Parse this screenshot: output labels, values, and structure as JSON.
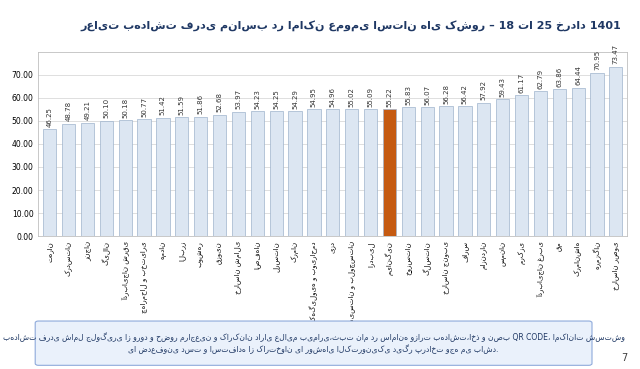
{
  "chart_data": {
    "type": "bar",
    "title": "رعایت بهداشت فردی مناسب در اماکن عمومی استان های کشور – 18 تا 25 خرداد 1401",
    "categories": [
      "تهران",
      "کردستان",
      "زنجان",
      "گیلان",
      "آذربایجان شرقی",
      "چهارمحال و بختیاری",
      "همدان",
      "البرز",
      "بوشهر",
      "قزوین",
      "خراسان شمالی",
      "اصفهان",
      "لرستان",
      "کرمان",
      "کهگیلویه و بویراحمد",
      "یزد",
      "سیستان و بلوچستان",
      "اردبیل",
      "میانگین",
      "خوزستان",
      "گلستان",
      "خراسان جنوبی",
      "فارس",
      "مازندران",
      "سمنان",
      "مرکزی",
      "آذربایجان غربی",
      "قم",
      "کرمانشاه",
      "هرمزگان",
      "خراسان رضوی"
    ],
    "values": [
      46.25,
      48.78,
      49.21,
      50.1,
      50.18,
      50.77,
      51.42,
      51.59,
      51.86,
      52.68,
      53.97,
      54.23,
      54.25,
      54.29,
      54.95,
      54.96,
      55.02,
      55.09,
      55.22,
      55.83,
      56.07,
      56.28,
      56.42,
      57.92,
      59.43,
      61.17,
      62.79,
      63.86,
      64.44,
      70.95,
      73.47
    ],
    "value_labels": [
      "46.25",
      "48.78",
      "49.21",
      "50.10",
      "50.18",
      "50.77",
      "51.42",
      "51.59",
      "51.86",
      "52.68",
      "53.97",
      "54.23",
      "54.25",
      "54.29",
      "54.95",
      "54.96",
      "55.02",
      "55.09",
      "55.22",
      "55.83",
      "56.07",
      "56.28",
      "56.42",
      "57.92",
      "59.43",
      "61.17",
      "62.79",
      "63.86",
      "64.44",
      "70.95",
      "73.47"
    ],
    "colors": [
      "#dce6f2",
      "#dce6f2",
      "#dce6f2",
      "#dce6f2",
      "#dce6f2",
      "#dce6f2",
      "#dce6f2",
      "#dce6f2",
      "#dce6f2",
      "#dce6f2",
      "#dce6f2",
      "#dce6f2",
      "#dce6f2",
      "#dce6f2",
      "#dce6f2",
      "#dce6f2",
      "#dce6f2",
      "#dce6f2",
      "#c55a11",
      "#dce6f2",
      "#dce6f2",
      "#dce6f2",
      "#dce6f2",
      "#dce6f2",
      "#dce6f2",
      "#dce6f2",
      "#dce6f2",
      "#dce6f2",
      "#dce6f2",
      "#dce6f2",
      "#dce6f2"
    ],
    "ylim": [
      0,
      80
    ],
    "yticks": [
      {
        "value": 0,
        "label": "0.00"
      },
      {
        "value": 10,
        "label": "10.00"
      },
      {
        "value": 20,
        "label": "20.00"
      },
      {
        "value": 30,
        "label": "30.00"
      },
      {
        "value": 40,
        "label": "40.00"
      },
      {
        "value": 50,
        "label": "50.00"
      },
      {
        "value": 60,
        "label": "60.00"
      },
      {
        "value": 70,
        "label": "70.00"
      }
    ],
    "grid": true,
    "data_labels": true,
    "note": "بهداشت فردی شامل جلوگیری از ورود و حضور مراجعین و کارکنان دارای علایم بیماری،ثبت نام در سامانه وزارت بهداشت،اخذ و نصب QR CODE، امکانات شستشو یا ضدعفونی دست و استفاده از کارتخوان یا روشهای الکترونیکی دیگر پرداخت وجه می باشد.",
    "page_number": "7"
  }
}
